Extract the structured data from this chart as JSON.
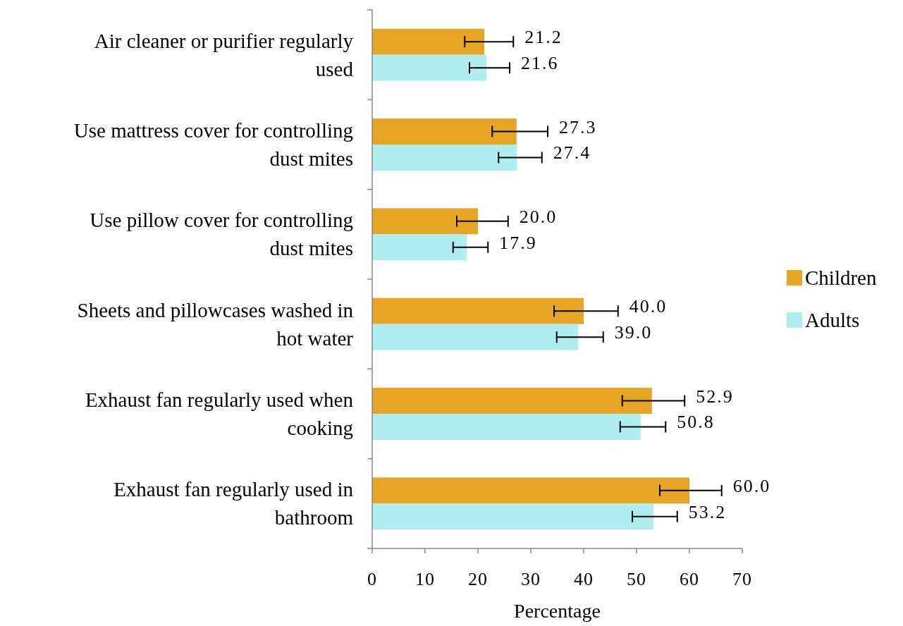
{
  "chart_data": {
    "type": "bar",
    "orientation": "horizontal",
    "xlabel": "Percentage",
    "categories": [
      "Air cleaner or purifier regularly used",
      "Use mattress cover for controlling dust mites",
      "Use pillow cover for controlling dust mites",
      "Sheets and pillowcases washed in hot water",
      "Exhaust fan regularly used when cooking",
      "Exhaust fan regularly used in bathroom"
    ],
    "series": [
      {
        "name": "Children",
        "color": "#e6a524",
        "values": [
          21.2,
          27.3,
          20.0,
          40.0,
          52.9,
          60.0
        ],
        "value_labels": [
          "21.2",
          "27.3",
          "20.0",
          "40.0",
          "52.9",
          "60.0"
        ],
        "errors": [
          [
            17.5,
            26.7
          ],
          [
            22.7,
            33.2
          ],
          [
            16.0,
            25.7
          ],
          [
            34.4,
            46.5
          ],
          [
            47.3,
            59.1
          ],
          [
            54.4,
            66.1
          ]
        ]
      },
      {
        "name": "Adults",
        "color": "#aeeef0",
        "values": [
          21.6,
          27.4,
          17.9,
          39.0,
          50.8,
          53.2
        ],
        "value_labels": [
          "21.6",
          "27.4",
          "17.9",
          "39.0",
          "50.8",
          "53.2"
        ],
        "errors": [
          [
            18.4,
            26.0
          ],
          [
            23.9,
            32.1
          ],
          [
            15.3,
            21.9
          ],
          [
            34.9,
            43.7
          ],
          [
            46.9,
            55.5
          ],
          [
            49.2,
            57.7
          ]
        ]
      }
    ],
    "xlim": [
      0,
      70
    ],
    "xticks": [
      0,
      10,
      20,
      30,
      40,
      50,
      60,
      70
    ],
    "grid": false,
    "legend": "right"
  }
}
